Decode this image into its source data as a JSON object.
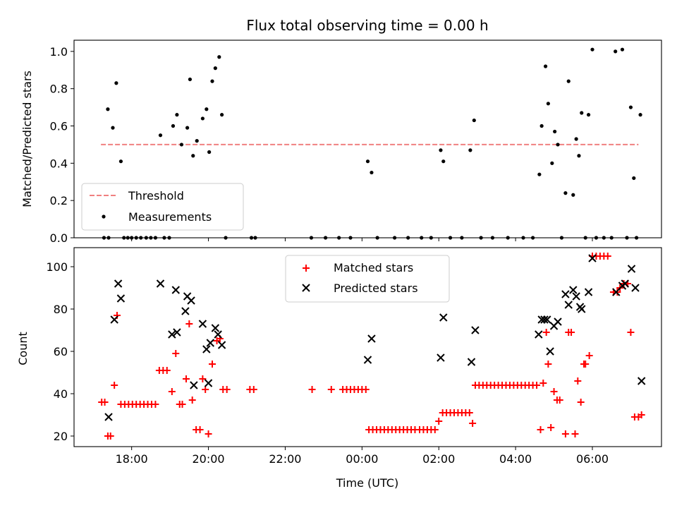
{
  "chart_data": [
    {
      "type": "scatter",
      "title": "Flux total observing time = 0.00 h",
      "xlabel": "",
      "ylabel": "Matched/Predicted stars",
      "xlim": [
        16.5,
        31.8
      ],
      "ylim": [
        0.0,
        1.06
      ],
      "yticks": [
        0.0,
        0.2,
        0.4,
        0.6,
        0.8,
        1.0
      ],
      "ytick_labels": [
        "0.0",
        "0.2",
        "0.4",
        "0.6",
        "0.8",
        "1.0"
      ],
      "xticks": [
        18,
        20,
        22,
        24,
        26,
        28,
        30
      ],
      "legend_position": "lower-left",
      "legend": [
        "Threshold",
        "Measurements"
      ],
      "threshold": {
        "name": "Threshold",
        "value": 0.5,
        "x_range": [
          17.2,
          31.2
        ],
        "color": "#f08080",
        "style": "dashed"
      },
      "series": [
        {
          "name": "Measurements",
          "color": "#000000",
          "marker": "dot",
          "points": [
            [
              17.28,
              0.0
            ],
            [
              17.38,
              0.69
            ],
            [
              17.4,
              0.0
            ],
            [
              17.51,
              0.59
            ],
            [
              17.6,
              0.83
            ],
            [
              17.72,
              0.41
            ],
            [
              17.8,
              0.0
            ],
            [
              17.9,
              0.0
            ],
            [
              18.0,
              0.0
            ],
            [
              18.12,
              0.0
            ],
            [
              18.24,
              0.0
            ],
            [
              18.38,
              0.0
            ],
            [
              18.5,
              0.0
            ],
            [
              18.62,
              0.0
            ],
            [
              18.75,
              0.55
            ],
            [
              18.85,
              0.0
            ],
            [
              18.98,
              0.0
            ],
            [
              19.08,
              0.6
            ],
            [
              19.18,
              0.66
            ],
            [
              19.3,
              0.5
            ],
            [
              19.45,
              0.59
            ],
            [
              19.52,
              0.85
            ],
            [
              19.6,
              0.44
            ],
            [
              19.7,
              0.52
            ],
            [
              19.85,
              0.64
            ],
            [
              19.95,
              0.69
            ],
            [
              20.02,
              0.46
            ],
            [
              20.1,
              0.84
            ],
            [
              20.18,
              0.91
            ],
            [
              20.28,
              0.97
            ],
            [
              20.35,
              0.66
            ],
            [
              20.45,
              0.0
            ],
            [
              21.12,
              0.0
            ],
            [
              21.22,
              0.0
            ],
            [
              22.68,
              0.0
            ],
            [
              23.05,
              0.0
            ],
            [
              23.4,
              0.0
            ],
            [
              23.7,
              0.0
            ],
            [
              24.15,
              0.41
            ],
            [
              24.25,
              0.35
            ],
            [
              24.4,
              0.0
            ],
            [
              24.85,
              0.0
            ],
            [
              25.2,
              0.0
            ],
            [
              25.55,
              0.0
            ],
            [
              25.8,
              0.0
            ],
            [
              26.05,
              0.47
            ],
            [
              26.12,
              0.41
            ],
            [
              26.3,
              0.0
            ],
            [
              26.6,
              0.0
            ],
            [
              26.82,
              0.47
            ],
            [
              26.92,
              0.63
            ],
            [
              27.1,
              0.0
            ],
            [
              27.4,
              0.0
            ],
            [
              27.8,
              0.0
            ],
            [
              28.2,
              0.0
            ],
            [
              28.45,
              0.0
            ],
            [
              28.62,
              0.34
            ],
            [
              28.68,
              0.6
            ],
            [
              28.78,
              0.92
            ],
            [
              28.85,
              0.72
            ],
            [
              28.95,
              0.4
            ],
            [
              29.02,
              0.57
            ],
            [
              29.1,
              0.5
            ],
            [
              29.2,
              0.0
            ],
            [
              29.3,
              0.24
            ],
            [
              29.38,
              0.84
            ],
            [
              29.5,
              0.23
            ],
            [
              29.58,
              0.53
            ],
            [
              29.65,
              0.44
            ],
            [
              29.72,
              0.67
            ],
            [
              29.82,
              0.0
            ],
            [
              29.9,
              0.66
            ],
            [
              30.0,
              1.01
            ],
            [
              30.1,
              0.0
            ],
            [
              30.3,
              0.0
            ],
            [
              30.5,
              0.0
            ],
            [
              30.6,
              1.0
            ],
            [
              30.78,
              1.01
            ],
            [
              30.9,
              0.0
            ],
            [
              31.0,
              0.7
            ],
            [
              31.08,
              0.32
            ],
            [
              31.15,
              0.0
            ],
            [
              31.25,
              0.66
            ]
          ]
        }
      ]
    },
    {
      "type": "scatter",
      "title": "",
      "xlabel": "Time (UTC)",
      "ylabel": "Count",
      "xlim": [
        16.5,
        31.8
      ],
      "ylim": [
        15,
        109
      ],
      "yticks": [
        20,
        40,
        60,
        80,
        100
      ],
      "ytick_labels": [
        "20",
        "40",
        "60",
        "80",
        "100"
      ],
      "xticks": [
        18,
        20,
        22,
        24,
        26,
        28,
        30
      ],
      "xtick_labels": [
        "18:00",
        "20:00",
        "22:00",
        "00:00",
        "02:00",
        "04:00",
        "06:00"
      ],
      "legend_position": "upper-center",
      "legend": [
        "Matched stars",
        "Predicted stars"
      ],
      "series": [
        {
          "name": "Matched stars",
          "color": "#ff0000",
          "marker": "plus",
          "points": [
            [
              17.22,
              36
            ],
            [
              17.3,
              36
            ],
            [
              17.38,
              20
            ],
            [
              17.45,
              20
            ],
            [
              17.55,
              44
            ],
            [
              17.62,
              77
            ],
            [
              17.72,
              35
            ],
            [
              17.82,
              35
            ],
            [
              17.92,
              35
            ],
            [
              18.02,
              35
            ],
            [
              18.12,
              35
            ],
            [
              18.22,
              35
            ],
            [
              18.32,
              35
            ],
            [
              18.42,
              35
            ],
            [
              18.52,
              35
            ],
            [
              18.62,
              35
            ],
            [
              18.72,
              51
            ],
            [
              18.82,
              51
            ],
            [
              18.92,
              51
            ],
            [
              19.05,
              41
            ],
            [
              19.15,
              59
            ],
            [
              19.25,
              35
            ],
            [
              19.32,
              35
            ],
            [
              19.42,
              47
            ],
            [
              19.5,
              73
            ],
            [
              19.58,
              37
            ],
            [
              19.68,
              23
            ],
            [
              19.78,
              23
            ],
            [
              19.85,
              47
            ],
            [
              19.92,
              42
            ],
            [
              20.0,
              21
            ],
            [
              20.1,
              54
            ],
            [
              20.22,
              65
            ],
            [
              20.3,
              66
            ],
            [
              20.38,
              42
            ],
            [
              20.48,
              42
            ],
            [
              21.08,
              42
            ],
            [
              21.18,
              42
            ],
            [
              22.7,
              42
            ],
            [
              23.2,
              42
            ],
            [
              23.5,
              42
            ],
            [
              23.6,
              42
            ],
            [
              23.7,
              42
            ],
            [
              23.8,
              42
            ],
            [
              23.9,
              42
            ],
            [
              24.0,
              42
            ],
            [
              24.1,
              42
            ],
            [
              24.18,
              23
            ],
            [
              24.28,
              23
            ],
            [
              24.38,
              23
            ],
            [
              24.48,
              23
            ],
            [
              24.58,
              23
            ],
            [
              24.68,
              23
            ],
            [
              24.78,
              23
            ],
            [
              24.88,
              23
            ],
            [
              24.98,
              23
            ],
            [
              25.08,
              23
            ],
            [
              25.18,
              23
            ],
            [
              25.28,
              23
            ],
            [
              25.38,
              23
            ],
            [
              25.5,
              23
            ],
            [
              25.6,
              23
            ],
            [
              25.7,
              23
            ],
            [
              25.8,
              23
            ],
            [
              25.9,
              23
            ],
            [
              26.0,
              27
            ],
            [
              26.1,
              31
            ],
            [
              26.2,
              31
            ],
            [
              26.3,
              31
            ],
            [
              26.4,
              31
            ],
            [
              26.5,
              31
            ],
            [
              26.6,
              31
            ],
            [
              26.7,
              31
            ],
            [
              26.8,
              31
            ],
            [
              26.88,
              26
            ],
            [
              26.95,
              44
            ],
            [
              27.05,
              44
            ],
            [
              27.15,
              44
            ],
            [
              27.25,
              44
            ],
            [
              27.35,
              44
            ],
            [
              27.45,
              44
            ],
            [
              27.55,
              44
            ],
            [
              27.65,
              44
            ],
            [
              27.75,
              44
            ],
            [
              27.85,
              44
            ],
            [
              27.95,
              44
            ],
            [
              28.05,
              44
            ],
            [
              28.15,
              44
            ],
            [
              28.25,
              44
            ],
            [
              28.35,
              44
            ],
            [
              28.45,
              44
            ],
            [
              28.55,
              44
            ],
            [
              28.65,
              23
            ],
            [
              28.72,
              45
            ],
            [
              28.8,
              69
            ],
            [
              28.85,
              54
            ],
            [
              28.92,
              24
            ],
            [
              29.0,
              41
            ],
            [
              29.08,
              37
            ],
            [
              29.15,
              37
            ],
            [
              29.3,
              21
            ],
            [
              29.38,
              69
            ],
            [
              29.45,
              69
            ],
            [
              29.55,
              21
            ],
            [
              29.62,
              46
            ],
            [
              29.7,
              36
            ],
            [
              29.78,
              54
            ],
            [
              29.82,
              54
            ],
            [
              29.92,
              58
            ],
            [
              30.0,
              105
            ],
            [
              30.1,
              105
            ],
            [
              30.2,
              105
            ],
            [
              30.3,
              105
            ],
            [
              30.4,
              105
            ],
            [
              30.55,
              88
            ],
            [
              30.65,
              88
            ],
            [
              30.72,
              90
            ],
            [
              30.82,
              92
            ],
            [
              30.92,
              92
            ],
            [
              31.0,
              69
            ],
            [
              31.1,
              29
            ],
            [
              31.2,
              29
            ],
            [
              31.28,
              30
            ]
          ]
        },
        {
          "name": "Predicted stars",
          "color": "#000000",
          "marker": "x",
          "points": [
            [
              17.4,
              29
            ],
            [
              17.55,
              75
            ],
            [
              17.65,
              92
            ],
            [
              17.72,
              85
            ],
            [
              18.75,
              92
            ],
            [
              19.05,
              68
            ],
            [
              19.15,
              89
            ],
            [
              19.18,
              69
            ],
            [
              19.4,
              79
            ],
            [
              19.45,
              86
            ],
            [
              19.55,
              84
            ],
            [
              19.62,
              44
            ],
            [
              19.85,
              73
            ],
            [
              19.95,
              61
            ],
            [
              20.0,
              45
            ],
            [
              20.05,
              64
            ],
            [
              20.18,
              71
            ],
            [
              20.25,
              68
            ],
            [
              20.35,
              63
            ],
            [
              24.15,
              56
            ],
            [
              24.25,
              66
            ],
            [
              26.05,
              57
            ],
            [
              26.12,
              76
            ],
            [
              26.85,
              55
            ],
            [
              26.95,
              70
            ],
            [
              28.6,
              68
            ],
            [
              28.68,
              75
            ],
            [
              28.75,
              75
            ],
            [
              28.82,
              75
            ],
            [
              28.9,
              60
            ],
            [
              29.0,
              72
            ],
            [
              29.1,
              74
            ],
            [
              29.3,
              87
            ],
            [
              29.38,
              82
            ],
            [
              29.5,
              89
            ],
            [
              29.58,
              86
            ],
            [
              29.68,
              81
            ],
            [
              29.72,
              80
            ],
            [
              29.9,
              88
            ],
            [
              30.0,
              104
            ],
            [
              30.62,
              88
            ],
            [
              30.78,
              91
            ],
            [
              30.85,
              92
            ],
            [
              31.02,
              99
            ],
            [
              31.12,
              90
            ],
            [
              31.28,
              46
            ]
          ]
        }
      ]
    }
  ]
}
